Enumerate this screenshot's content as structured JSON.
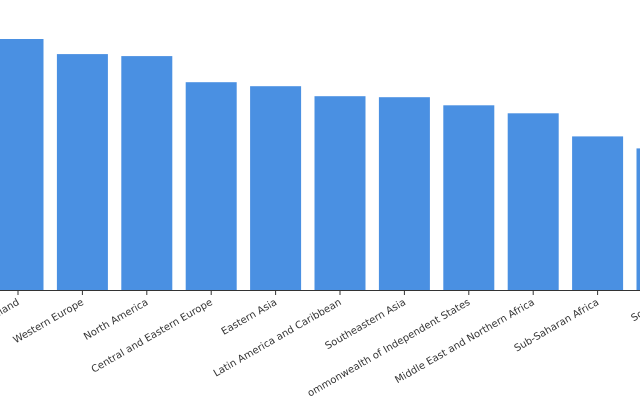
{
  "chart_data": {
    "type": "bar",
    "categories": [
      "Australia and New Zealand",
      "Western Europe",
      "North America",
      "Central and Eastern Europe",
      "Eastern Asia",
      "Latin America and Caribbean",
      "Southeastern Asia",
      "Commonwealth of Independent States",
      "Middle East and Northern Africa",
      "Sub-Saharan Africa",
      "Southern Asia"
    ],
    "visible_tick_labels": [
      "ealand",
      "Western Europe",
      "North America",
      "Central and Eastern Europe",
      "Eastern Asia",
      "Latin America and Caribbean",
      "Southeastern Asia",
      "ommonwealth of Independent States",
      "Middle East and Northern Africa",
      "Sub-Saharan Africa",
      "Southe"
    ],
    "values": [
      250,
      235,
      233,
      207,
      203,
      193,
      192,
      184,
      176,
      153,
      141
    ],
    "ylim": [
      0,
      250
    ],
    "title": "",
    "xlabel": "",
    "ylabel": "",
    "grid": false,
    "bar_color": "#4a90e2",
    "axis_color": "#333333",
    "text_color": "#333333"
  }
}
